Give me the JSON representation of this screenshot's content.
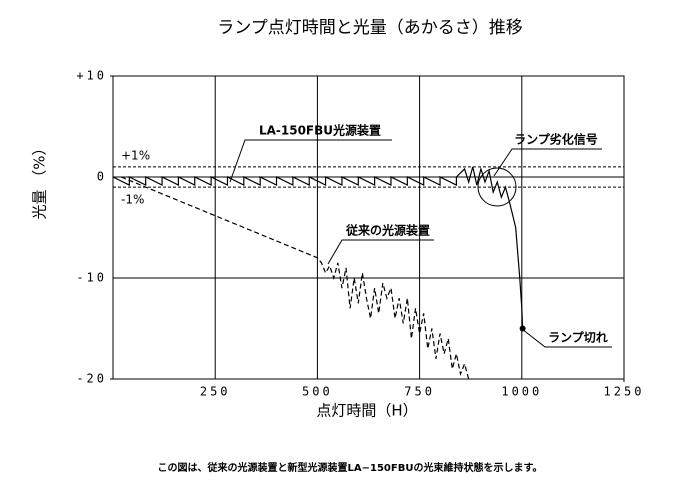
{
  "chart_data": {
    "type": "line",
    "title": "ランプ点灯時間と光量（あかるさ）推移",
    "x_label": "点灯時間（H）",
    "y_label": "光量 （%）",
    "caption": "この図は、従来の光源装置と新型光源装置LA−150FBUの光束維持状態を示します。",
    "xlim": [
      0,
      1250
    ],
    "xticks": [
      250,
      500,
      750,
      1000,
      1250
    ],
    "ylim": [
      -20,
      10
    ],
    "yticks": [
      {
        "value": 10,
        "label": "+10"
      },
      0,
      -10,
      -20
    ],
    "grid": true,
    "reference_lines": [
      {
        "value": 1,
        "label": "+1%"
      },
      {
        "value": -1,
        "label": "-1%"
      }
    ],
    "series": [
      {
        "name": "LA-150FBU光源装置",
        "color": "#000000",
        "style": "solid",
        "x": [
          0,
          40,
          40,
          80,
          80,
          120,
          120,
          160,
          160,
          200,
          200,
          240,
          240,
          280,
          280,
          320,
          320,
          360,
          360,
          400,
          400,
          440,
          440,
          480,
          480,
          520,
          520,
          560,
          560,
          600,
          600,
          640,
          640,
          680,
          680,
          720,
          720,
          760,
          760,
          800,
          800,
          840,
          840,
          860,
          870,
          880,
          890,
          900,
          910,
          920,
          930,
          940,
          950,
          960,
          970,
          985,
          995,
          1000,
          1002
        ],
        "values": [
          0,
          -0.8,
          0,
          -0.8,
          0,
          -0.8,
          0,
          -0.8,
          0,
          -0.8,
          0,
          -0.8,
          0,
          -0.8,
          0,
          -0.8,
          0,
          -0.8,
          0,
          -0.8,
          0,
          -0.8,
          0,
          -0.8,
          0,
          -0.8,
          0,
          -0.8,
          0,
          -0.8,
          0,
          -0.8,
          0,
          -0.8,
          0,
          -0.8,
          0,
          -0.8,
          0,
          -0.8,
          0,
          -0.8,
          0,
          0.8,
          -0.5,
          1.0,
          -0.8,
          0.8,
          -0.5,
          0.6,
          -1.5,
          -0.5,
          -2,
          -1,
          -2.5,
          -5,
          -10,
          -13,
          -15
        ]
      },
      {
        "name": "従来の光源装置",
        "color": "#000000",
        "style": "dashed",
        "x": [
          20,
          500,
          510,
          520,
          530,
          540,
          550,
          560,
          570,
          580,
          590,
          600,
          610,
          620,
          630,
          640,
          650,
          660,
          670,
          680,
          690,
          700,
          710,
          720,
          730,
          740,
          750,
          760,
          770,
          780,
          790,
          800,
          810,
          820,
          830,
          840,
          850,
          860,
          870
        ],
        "values": [
          0,
          -8,
          -8.5,
          -9.5,
          -8.8,
          -10,
          -8.5,
          -11,
          -9,
          -13,
          -10,
          -12.5,
          -9.5,
          -12,
          -14,
          -11,
          -13.5,
          -10.5,
          -12,
          -11,
          -14,
          -12,
          -14.5,
          -12,
          -16,
          -13,
          -15.5,
          -13.5,
          -17,
          -15,
          -18,
          -15.5,
          -17.5,
          -16,
          -19,
          -17.5,
          -19.5,
          -18.5,
          -20
        ]
      }
    ],
    "annotations": [
      "ランプ劣化信号",
      "ランプ切れ"
    ]
  }
}
